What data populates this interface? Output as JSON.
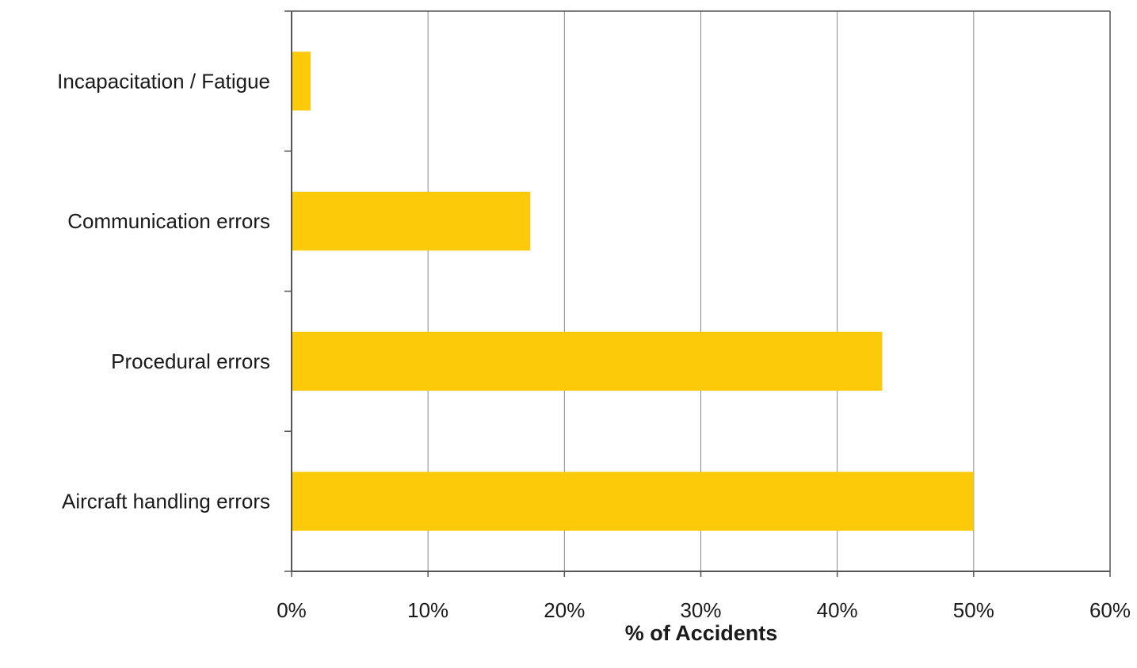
{
  "chart_data": {
    "type": "bar",
    "orientation": "horizontal",
    "categories": [
      "Incapacitation / Fatigue",
      "Communication errors",
      "Procedural errors",
      "Aircraft handling errors"
    ],
    "values": [
      1.4,
      17.5,
      43.3,
      50.0
    ],
    "xlabel": "% of Accidents",
    "ylabel": "",
    "xlim": [
      0,
      60
    ],
    "x_ticks": [
      0,
      10,
      20,
      30,
      40,
      50,
      60
    ],
    "x_tick_labels": [
      "0%",
      "10%",
      "20%",
      "30%",
      "40%",
      "50%",
      "60%"
    ],
    "grid": "vertical",
    "legend": "none",
    "bar_color": "#FCCA08",
    "grid_color": "#888888",
    "axis_color": "#555555"
  }
}
